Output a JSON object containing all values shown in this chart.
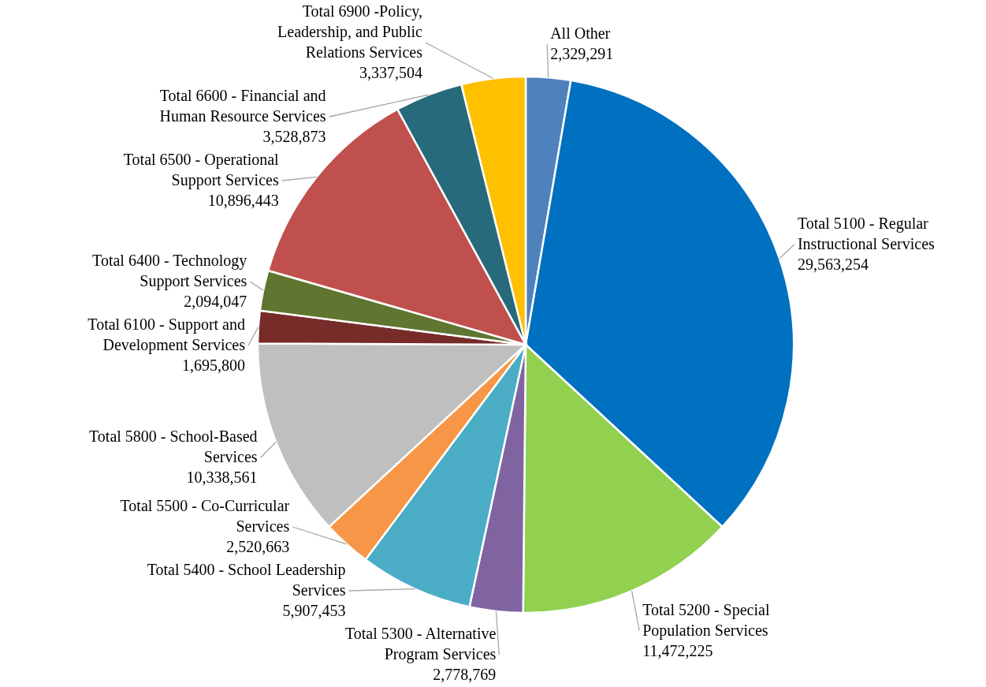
{
  "chart_data": {
    "type": "pie",
    "categories": [
      "All Other",
      "Total 5100 - Regular Instructional Services",
      "Total 5200 - Special Population Services",
      "Total 5300 - Alternative Program Services",
      "Total 5400 - School Leadership Services",
      "Total 5500 - Co-Curricular Services",
      "Total 5800 - School-Based Services",
      "Total 6100 - Support and Development Services",
      "Total 6400 - Technology Support Services",
      "Total 6500 - Operational Support Services",
      "Total 6600 - Financial and Human Resource Services",
      "Total 6900 -Policy, Leadership, and Public Relations Services"
    ],
    "values": [
      2329291,
      29563254,
      11472225,
      2778769,
      5907453,
      2520663,
      10338561,
      1695800,
      2094047,
      10896443,
      3528873,
      3337504
    ],
    "value_labels": [
      "2,329,291",
      "29,563,254",
      "11,472,225",
      "2,778,769",
      "5,907,453",
      "2,520,663",
      "10,338,561",
      "1,695,800",
      "2,094,047",
      "10,896,443",
      "3,528,873",
      "3,337,504"
    ],
    "colors": [
      "#4f81bd",
      "#0070c0",
      "#92d050",
      "#8064a2",
      "#4bacc6",
      "#f79646",
      "#bfbfbf",
      "#772c2a",
      "#5f7530",
      "#c0504d",
      "#276a7c",
      "#ffc000"
    ]
  }
}
